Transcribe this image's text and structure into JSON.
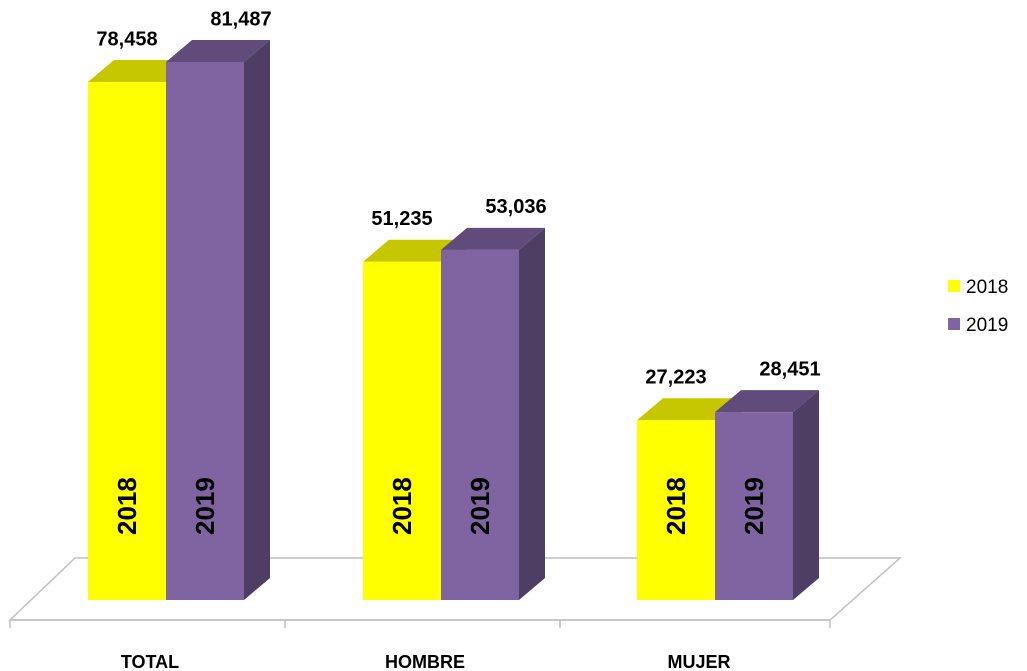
{
  "chart_data": {
    "type": "bar3d",
    "categories": [
      "TOTAL",
      "HOMBRE",
      "MUJER"
    ],
    "series": [
      {
        "name": "2018",
        "color": "#ffff00",
        "values": [
          78458,
          51235,
          27223
        ],
        "value_labels": [
          "78,458",
          "51,235",
          "27,223"
        ]
      },
      {
        "name": "2019",
        "color": "#8064a2",
        "values": [
          81487,
          53036,
          28451
        ],
        "value_labels": [
          "81,487",
          "53,036",
          "28,451"
        ]
      }
    ],
    "legend": "right"
  }
}
